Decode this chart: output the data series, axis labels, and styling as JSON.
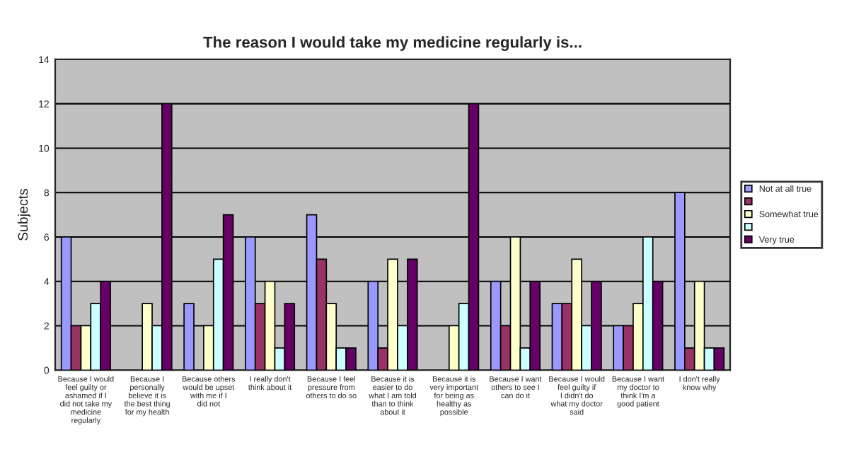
{
  "chart_data": {
    "type": "bar",
    "title": "The reason I would take my medicine regularly is...",
    "ylabel": "Subjects",
    "categories": [
      "Because I would feel guilty or ashamed if I did not take my medicine regularly",
      "Because I personally believe it is the best thing for my health",
      "Because others would be upset with me if I did not",
      "I really don't think about it",
      "Because I feel pressure from others to do so",
      "Because it is easier to do what I am told than to think about it",
      "Because it is very important for being as healthy as possible",
      "Because I want others to see I can do it",
      "Because I would feel guilty if I didn't do what my doctor said",
      "Because I want my doctor to think I'm a good patient",
      "I don't really know why"
    ],
    "series": [
      {
        "name": "Not at all true",
        "color": "#9999ff",
        "values": [
          6,
          0,
          3,
          6,
          7,
          4,
          0,
          4,
          3,
          2,
          8
        ]
      },
      {
        "color": "#993366",
        "values": [
          2,
          0,
          0,
          3,
          5,
          1,
          0,
          2,
          3,
          2,
          1
        ]
      },
      {
        "name": "Somewhat true",
        "color": "#ffffcc",
        "values": [
          2,
          3,
          2,
          4,
          3,
          5,
          2,
          6,
          5,
          3,
          4
        ]
      },
      {
        "color": "#ccffff",
        "values": [
          3,
          2,
          5,
          1,
          1,
          2,
          3,
          1,
          2,
          6,
          1
        ]
      },
      {
        "name": "Very true",
        "color": "#660066",
        "values": [
          4,
          12,
          7,
          3,
          1,
          5,
          12,
          4,
          4,
          4,
          1
        ]
      }
    ],
    "ylim": [
      0,
      14
    ],
    "yticks": [
      0,
      2,
      4,
      6,
      8,
      10,
      12,
      14
    ],
    "grid": "y",
    "legend": "right"
  }
}
